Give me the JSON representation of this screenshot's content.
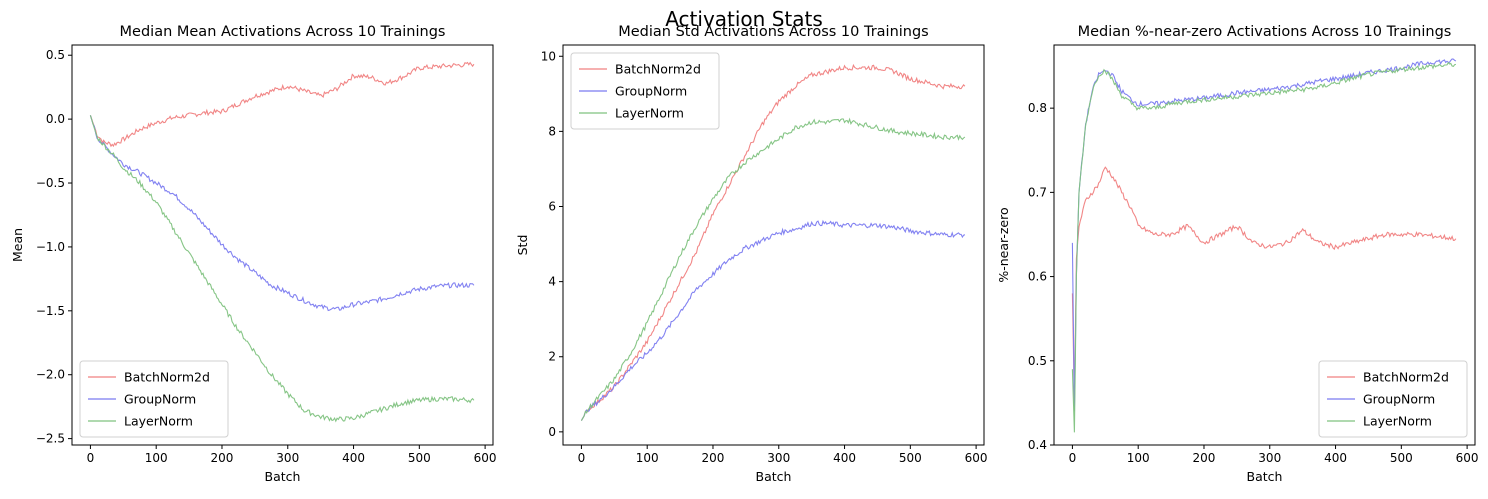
{
  "figure": {
    "title": "Activation Stats"
  },
  "series_styles": [
    {
      "name": "BatchNorm2d",
      "color": "#f08080"
    },
    {
      "name": "GroupNorm",
      "color": "#7b7bf0"
    },
    {
      "name": "LayerNorm",
      "color": "#7fc27f"
    }
  ],
  "chart_data": [
    {
      "type": "line",
      "title": "Median Mean Activations Across 10 Trainings",
      "xlabel": "Batch",
      "ylabel": "Mean",
      "xlim": [
        -28,
        612
      ],
      "ylim": [
        -2.55,
        0.58
      ],
      "xticks": [
        0,
        100,
        200,
        300,
        400,
        500,
        600
      ],
      "yticks": [
        -2.5,
        -2.0,
        -1.5,
        -1.0,
        -0.5,
        0.0,
        0.5
      ],
      "legend": "lower-left",
      "series": [
        {
          "name": "BatchNorm2d",
          "color": "#f08080",
          "x": [
            0,
            10,
            20,
            35,
            50,
            75,
            100,
            125,
            150,
            175,
            200,
            225,
            250,
            275,
            300,
            325,
            350,
            375,
            400,
            425,
            450,
            475,
            500,
            525,
            550,
            583
          ],
          "y": [
            0.03,
            -0.12,
            -0.18,
            -0.2,
            -0.16,
            -0.08,
            -0.03,
            0.01,
            0.03,
            0.05,
            0.06,
            0.12,
            0.18,
            0.22,
            0.26,
            0.22,
            0.18,
            0.24,
            0.34,
            0.33,
            0.28,
            0.33,
            0.4,
            0.41,
            0.42,
            0.43
          ]
        },
        {
          "name": "GroupNorm",
          "color": "#7b7bf0",
          "x": [
            0,
            10,
            20,
            35,
            50,
            75,
            100,
            125,
            150,
            175,
            200,
            225,
            250,
            275,
            300,
            325,
            350,
            375,
            400,
            425,
            450,
            475,
            500,
            525,
            550,
            583
          ],
          "y": [
            0.03,
            -0.14,
            -0.2,
            -0.28,
            -0.35,
            -0.42,
            -0.5,
            -0.58,
            -0.7,
            -0.84,
            -0.98,
            -1.1,
            -1.2,
            -1.3,
            -1.36,
            -1.42,
            -1.47,
            -1.49,
            -1.45,
            -1.43,
            -1.4,
            -1.36,
            -1.33,
            -1.31,
            -1.3,
            -1.3
          ]
        },
        {
          "name": "LayerNorm",
          "color": "#7fc27f",
          "x": [
            0,
            10,
            20,
            35,
            50,
            75,
            100,
            125,
            150,
            175,
            200,
            225,
            250,
            275,
            300,
            325,
            350,
            375,
            400,
            425,
            450,
            475,
            500,
            525,
            550,
            583
          ],
          "y": [
            0.03,
            -0.14,
            -0.2,
            -0.28,
            -0.38,
            -0.5,
            -0.65,
            -0.85,
            -1.05,
            -1.25,
            -1.45,
            -1.65,
            -1.82,
            -2.0,
            -2.15,
            -2.28,
            -2.33,
            -2.35,
            -2.34,
            -2.3,
            -2.26,
            -2.22,
            -2.2,
            -2.19,
            -2.19,
            -2.2
          ]
        }
      ]
    },
    {
      "type": "line",
      "title": "Median Std Activations Across 10 Trainings",
      "xlabel": "Batch",
      "ylabel": "Std",
      "xlim": [
        -28,
        612
      ],
      "ylim": [
        -0.35,
        10.3
      ],
      "xticks": [
        0,
        100,
        200,
        300,
        400,
        500,
        600
      ],
      "yticks": [
        0,
        2,
        4,
        6,
        8,
        10
      ],
      "legend": "upper-left",
      "series": [
        {
          "name": "BatchNorm2d",
          "color": "#f08080",
          "x": [
            0,
            10,
            25,
            50,
            75,
            100,
            125,
            150,
            175,
            200,
            225,
            250,
            275,
            300,
            325,
            350,
            375,
            400,
            425,
            450,
            475,
            500,
            525,
            550,
            583
          ],
          "y": [
            0.3,
            0.6,
            0.8,
            1.2,
            1.8,
            2.4,
            3.2,
            4.0,
            4.8,
            5.8,
            6.6,
            7.4,
            8.2,
            8.8,
            9.2,
            9.5,
            9.6,
            9.7,
            9.7,
            9.7,
            9.6,
            9.4,
            9.3,
            9.2,
            9.2
          ]
        },
        {
          "name": "GroupNorm",
          "color": "#7b7bf0",
          "x": [
            0,
            10,
            25,
            50,
            75,
            100,
            125,
            150,
            175,
            200,
            225,
            250,
            275,
            300,
            325,
            350,
            375,
            400,
            425,
            450,
            475,
            500,
            525,
            550,
            583
          ],
          "y": [
            0.3,
            0.6,
            0.8,
            1.2,
            1.7,
            2.1,
            2.6,
            3.2,
            3.8,
            4.2,
            4.6,
            4.9,
            5.1,
            5.3,
            5.4,
            5.55,
            5.55,
            5.5,
            5.5,
            5.5,
            5.45,
            5.35,
            5.3,
            5.25,
            5.25
          ]
        },
        {
          "name": "LayerNorm",
          "color": "#7fc27f",
          "x": [
            0,
            10,
            25,
            50,
            75,
            100,
            125,
            150,
            175,
            200,
            225,
            250,
            275,
            300,
            325,
            350,
            375,
            400,
            425,
            450,
            475,
            500,
            525,
            550,
            583
          ],
          "y": [
            0.3,
            0.6,
            0.9,
            1.4,
            2.1,
            2.9,
            3.8,
            4.7,
            5.5,
            6.2,
            6.8,
            7.2,
            7.5,
            7.8,
            8.1,
            8.25,
            8.25,
            8.3,
            8.2,
            8.1,
            8.0,
            7.95,
            7.9,
            7.85,
            7.85
          ]
        }
      ]
    },
    {
      "type": "line",
      "title": "Median %-near-zero Activations Across 10 Trainings",
      "xlabel": "Batch",
      "ylabel": "%-near-zero",
      "xlim": [
        -28,
        612
      ],
      "ylim": [
        0.4,
        0.875
      ],
      "xticks": [
        0,
        100,
        200,
        300,
        400,
        500,
        600
      ],
      "yticks": [
        0.4,
        0.5,
        0.6,
        0.7,
        0.8
      ],
      "legend": "lower-right",
      "series": [
        {
          "name": "BatchNorm2d",
          "color": "#f08080",
          "x": [
            0,
            3,
            6,
            10,
            20,
            30,
            40,
            50,
            60,
            75,
            90,
            100,
            125,
            150,
            175,
            200,
            225,
            250,
            275,
            300,
            325,
            350,
            375,
            400,
            425,
            450,
            475,
            500,
            525,
            550,
            583
          ],
          "y": [
            0.58,
            0.45,
            0.62,
            0.66,
            0.69,
            0.7,
            0.71,
            0.73,
            0.72,
            0.7,
            0.68,
            0.66,
            0.65,
            0.65,
            0.66,
            0.64,
            0.65,
            0.66,
            0.64,
            0.635,
            0.64,
            0.655,
            0.64,
            0.635,
            0.64,
            0.645,
            0.65,
            0.65,
            0.65,
            0.648,
            0.645
          ]
        },
        {
          "name": "GroupNorm",
          "color": "#7b7bf0",
          "x": [
            0,
            3,
            6,
            10,
            20,
            30,
            40,
            50,
            60,
            75,
            90,
            100,
            125,
            150,
            175,
            200,
            225,
            250,
            275,
            300,
            325,
            350,
            375,
            400,
            425,
            450,
            475,
            500,
            525,
            550,
            583
          ],
          "y": [
            0.64,
            0.44,
            0.6,
            0.7,
            0.78,
            0.82,
            0.84,
            0.845,
            0.84,
            0.82,
            0.81,
            0.805,
            0.805,
            0.808,
            0.81,
            0.812,
            0.815,
            0.818,
            0.82,
            0.822,
            0.825,
            0.828,
            0.832,
            0.835,
            0.838,
            0.842,
            0.845,
            0.848,
            0.852,
            0.855,
            0.856
          ]
        },
        {
          "name": "LayerNorm",
          "color": "#7fc27f",
          "x": [
            0,
            3,
            6,
            10,
            20,
            30,
            40,
            50,
            60,
            75,
            90,
            100,
            125,
            150,
            175,
            200,
            225,
            250,
            275,
            300,
            325,
            350,
            375,
            400,
            425,
            450,
            475,
            500,
            525,
            550,
            583
          ],
          "y": [
            0.49,
            0.415,
            0.6,
            0.7,
            0.78,
            0.82,
            0.84,
            0.845,
            0.835,
            0.815,
            0.805,
            0.8,
            0.8,
            0.805,
            0.808,
            0.81,
            0.812,
            0.814,
            0.816,
            0.818,
            0.82,
            0.822,
            0.825,
            0.83,
            0.835,
            0.84,
            0.843,
            0.846,
            0.848,
            0.85,
            0.852
          ]
        }
      ]
    }
  ]
}
